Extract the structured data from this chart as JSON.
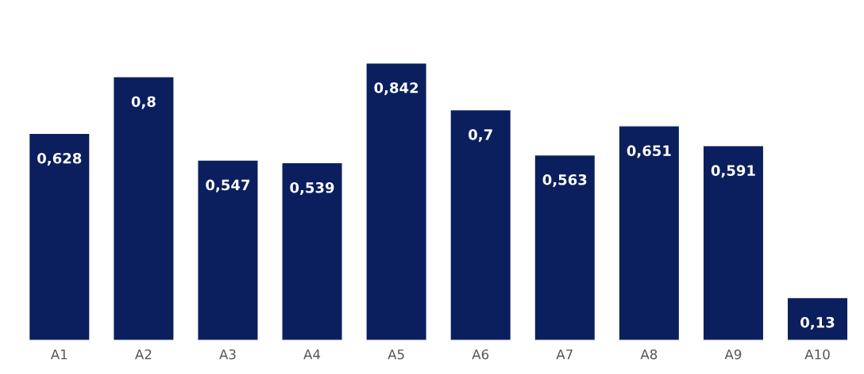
{
  "chart_data": {
    "type": "bar",
    "categories": [
      "A1",
      "A2",
      "A3",
      "A4",
      "A5",
      "A6",
      "A7",
      "A8",
      "A9",
      "A10"
    ],
    "values": [
      0.628,
      0.8,
      0.547,
      0.539,
      0.842,
      0.7,
      0.563,
      0.651,
      0.591,
      0.13
    ],
    "value_labels": [
      "0,628",
      "0,8",
      "0,547",
      "0,539",
      "0,842",
      "0,7",
      "0,563",
      "0,651",
      "0,591",
      "0,13"
    ],
    "color": "#0b1f5e"
  }
}
